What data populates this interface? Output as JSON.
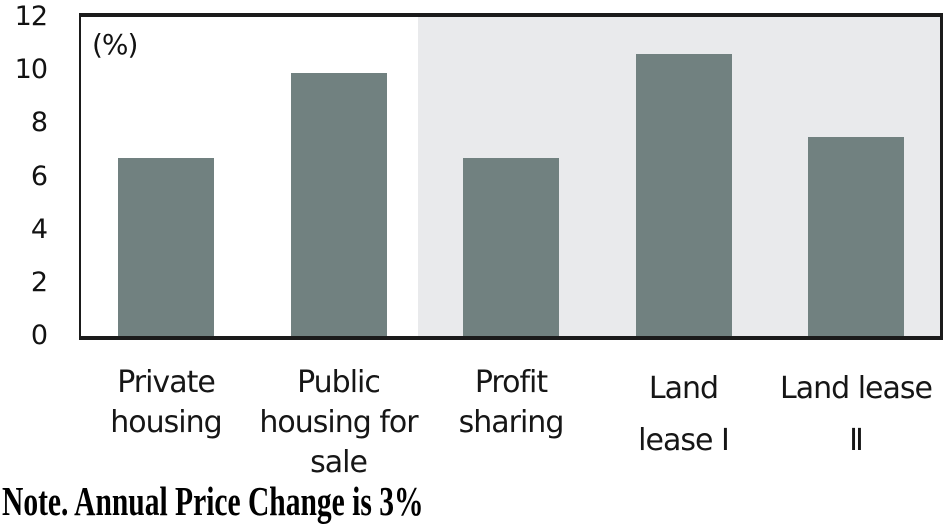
{
  "chart_data": {
    "type": "bar",
    "unit_label": "(%)",
    "categories": [
      "Private\nhousing",
      "Public\nhousing for\nsale",
      "Profit\nsharing",
      "Land\nlease Ⅰ",
      "Land lease\nⅡ"
    ],
    "values": [
      6.7,
      9.9,
      6.7,
      10.6,
      7.5
    ],
    "y_ticks": [
      0,
      2,
      4,
      6,
      8,
      10,
      12
    ],
    "ylim": [
      0,
      12
    ],
    "grid": false,
    "legend": "none",
    "bar_color": "#718180",
    "highlight_region": {
      "covers_categories": [
        "Profit sharing",
        "Land lease Ⅰ",
        "Land lease Ⅱ"
      ],
      "from_category_index": 2,
      "to_category_index": 4,
      "color": "#e9eaec"
    },
    "note": "Note. Annual Price Change is 3%"
  }
}
